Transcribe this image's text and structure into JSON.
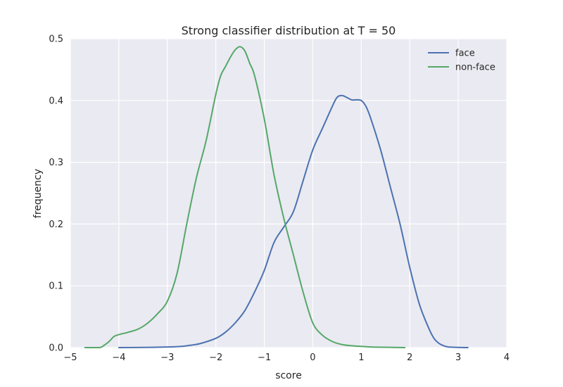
{
  "chart_data": {
    "type": "line",
    "title": "Strong classifier distribution at T = 50",
    "xlabel": "score",
    "ylabel": "frequency",
    "xlim": [
      -5,
      4
    ],
    "ylim": [
      0,
      0.5
    ],
    "xticks": [
      -5,
      -4,
      -3,
      -2,
      -1,
      0,
      1,
      2,
      3,
      4
    ],
    "yticks": [
      0.0,
      0.1,
      0.2,
      0.3,
      0.4,
      0.5
    ],
    "xtick_labels": [
      "−5",
      "−4",
      "−3",
      "−2",
      "−1",
      "0",
      "1",
      "2",
      "3",
      "4"
    ],
    "ytick_labels": [
      "0.0",
      "0.1",
      "0.2",
      "0.3",
      "0.4",
      "0.5"
    ],
    "grid": true,
    "legend_position": "top-right",
    "background_color": "#eaeaf2",
    "series": [
      {
        "name": "face",
        "color": "#4c72b0",
        "x": [
          -4.0,
          -3.5,
          -3.0,
          -2.7,
          -2.5,
          -2.3,
          -2.0,
          -1.8,
          -1.6,
          -1.4,
          -1.2,
          -1.0,
          -0.8,
          -0.6,
          -0.4,
          -0.2,
          0.0,
          0.2,
          0.4,
          0.5,
          0.6,
          0.7,
          0.8,
          0.9,
          1.0,
          1.1,
          1.2,
          1.4,
          1.6,
          1.8,
          2.0,
          2.2,
          2.4,
          2.5,
          2.6,
          2.7,
          2.8,
          3.0,
          3.2
        ],
        "y": [
          0.0,
          0.0003,
          0.001,
          0.002,
          0.004,
          0.007,
          0.015,
          0.025,
          0.04,
          0.06,
          0.09,
          0.125,
          0.17,
          0.195,
          0.22,
          0.27,
          0.32,
          0.355,
          0.39,
          0.405,
          0.408,
          0.405,
          0.401,
          0.401,
          0.4,
          0.39,
          0.37,
          0.32,
          0.26,
          0.2,
          0.13,
          0.07,
          0.03,
          0.015,
          0.007,
          0.003,
          0.001,
          0.0003,
          0.0
        ]
      },
      {
        "name": "non-face",
        "color": "#55a868",
        "x": [
          -4.7,
          -4.4,
          -4.3,
          -4.2,
          -4.1,
          -4.0,
          -3.8,
          -3.6,
          -3.4,
          -3.2,
          -3.0,
          -2.8,
          -2.6,
          -2.4,
          -2.2,
          -2.0,
          -1.9,
          -1.8,
          -1.7,
          -1.6,
          -1.5,
          -1.4,
          -1.3,
          -1.2,
          -1.0,
          -0.8,
          -0.6,
          -0.4,
          -0.2,
          0.0,
          0.2,
          0.4,
          0.6,
          0.8,
          1.0,
          1.2,
          1.5,
          1.9
        ],
        "y": [
          0.0,
          0.0,
          0.004,
          0.01,
          0.018,
          0.021,
          0.025,
          0.03,
          0.04,
          0.055,
          0.075,
          0.12,
          0.2,
          0.275,
          0.335,
          0.41,
          0.44,
          0.455,
          0.47,
          0.482,
          0.487,
          0.48,
          0.46,
          0.44,
          0.37,
          0.28,
          0.21,
          0.15,
          0.09,
          0.04,
          0.02,
          0.01,
          0.005,
          0.003,
          0.002,
          0.001,
          0.0005,
          0.0
        ]
      }
    ]
  }
}
